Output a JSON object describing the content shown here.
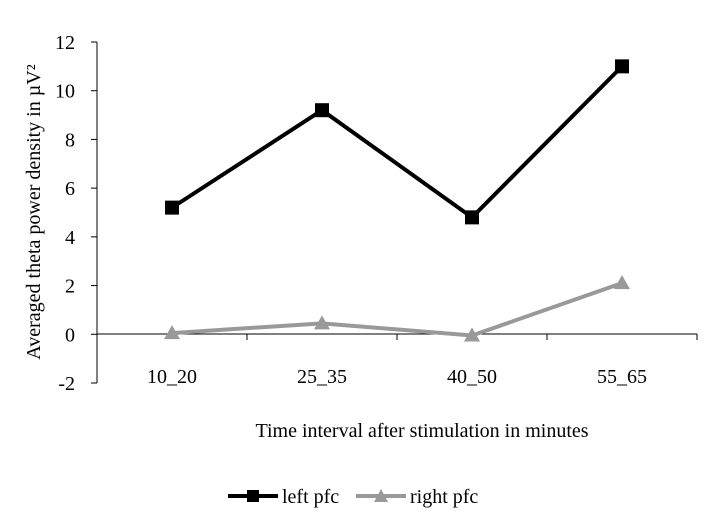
{
  "chart_data": {
    "type": "line",
    "categories": [
      "10_20",
      "25_35",
      "40_50",
      "55_65"
    ],
    "series": [
      {
        "name": "left pfc",
        "values": [
          5.2,
          9.2,
          4.8,
          11.0
        ],
        "color": "#000000",
        "marker": "square"
      },
      {
        "name": "right pfc",
        "values": [
          0.05,
          0.45,
          -0.05,
          2.1
        ],
        "color": "#999999",
        "marker": "triangle"
      }
    ],
    "title": "",
    "xlabel": "Time interval after stimulation in minutes",
    "ylabel": "Averaged theta power density in µV²",
    "ylim": [
      -2,
      12
    ],
    "yticks": [
      -2,
      0,
      2,
      4,
      6,
      8,
      10,
      12
    ],
    "ytick_labels": [
      "-2",
      "0",
      "2",
      "4",
      "6",
      "8",
      "10",
      "12"
    ],
    "grid": false,
    "legend_position": "bottom-center"
  }
}
